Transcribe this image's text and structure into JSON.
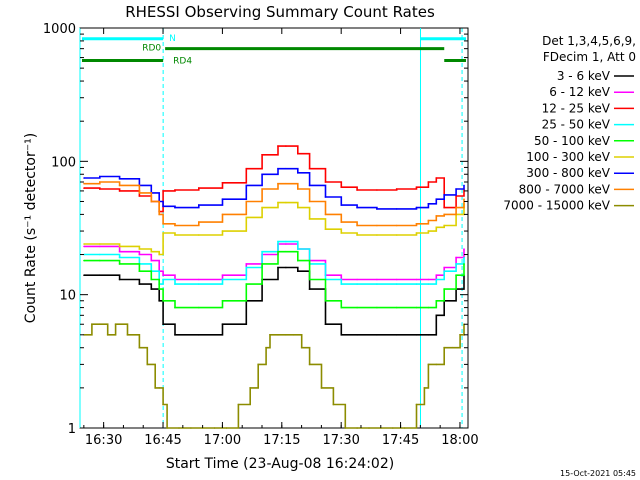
{
  "chart_data": {
    "type": "line",
    "title": "RHESSI Observing Summary Count Rates",
    "xlabel": "Start Time (23-Aug-08 16:24:02)",
    "ylabel": "Count Rate (s⁻¹ detector⁻¹)",
    "x_unit": "minutes since 16:24:02",
    "xlim": [
      0,
      98
    ],
    "ylim": [
      1,
      1000
    ],
    "yscale": "log",
    "x_ticks": [
      {
        "x": 5.97,
        "label": "16:30"
      },
      {
        "x": 20.97,
        "label": "16:45"
      },
      {
        "x": 35.97,
        "label": "17:00"
      },
      {
        "x": 50.97,
        "label": "17:15"
      },
      {
        "x": 65.97,
        "label": "17:30"
      },
      {
        "x": 80.97,
        "label": "17:45"
      },
      {
        "x": 95.97,
        "label": "18:00"
      }
    ],
    "y_ticks": [
      {
        "y": 1,
        "label": "1"
      },
      {
        "y": 10,
        "label": "10"
      },
      {
        "y": 100,
        "label": "100"
      },
      {
        "y": 1000,
        "label": "1000"
      }
    ],
    "legend_header": [
      "Det 1,3,4,5,6,9,",
      "FDecim 1, Att 0"
    ],
    "legend_position": "right",
    "footer": "15-Oct-2021 05:45",
    "series": [
      {
        "name": "3 - 6 keV",
        "color": "#000000",
        "x": [
          1,
          5,
          10,
          15,
          18,
          20,
          21,
          24,
          30,
          36,
          42,
          46,
          50,
          52,
          55,
          58,
          62,
          66,
          70,
          75,
          80,
          85,
          88,
          90,
          92,
          95,
          97
        ],
        "y": [
          14,
          14,
          13,
          12,
          11,
          9,
          6,
          5,
          5,
          6,
          9,
          13,
          16,
          16,
          15,
          11,
          6,
          5,
          5,
          5,
          5,
          5,
          5,
          7,
          9,
          11,
          14
        ]
      },
      {
        "name": "6 - 12 keV",
        "color": "#ff00ff",
        "x": [
          1,
          5,
          10,
          15,
          18,
          20,
          21,
          24,
          30,
          36,
          42,
          46,
          50,
          52,
          55,
          58,
          62,
          66,
          70,
          75,
          80,
          85,
          88,
          90,
          92,
          95,
          97
        ],
        "y": [
          23,
          23,
          21,
          20,
          18,
          15,
          14,
          13,
          13,
          14,
          17,
          20,
          24,
          24,
          22,
          18,
          14,
          13,
          13,
          13,
          13,
          13,
          13,
          14,
          16,
          19,
          22
        ]
      },
      {
        "name": "12 - 25 keV",
        "color": "#ff0000",
        "x": [
          1,
          5,
          10,
          15,
          18,
          20,
          21,
          24,
          30,
          36,
          42,
          46,
          50,
          52,
          55,
          58,
          62,
          66,
          70,
          75,
          80,
          85,
          88,
          90,
          92,
          95,
          97
        ],
        "y": [
          63,
          62,
          60,
          55,
          50,
          42,
          60,
          61,
          63,
          69,
          88,
          112,
          130,
          130,
          114,
          88,
          70,
          64,
          61,
          61,
          62,
          64,
          70,
          75,
          45,
          55,
          62
        ]
      },
      {
        "name": "25 - 50 keV",
        "color": "#00ffff",
        "x": [
          1,
          5,
          10,
          15,
          18,
          20,
          21,
          24,
          30,
          36,
          42,
          46,
          50,
          52,
          55,
          58,
          62,
          66,
          70,
          75,
          80,
          85,
          88,
          90,
          92,
          95,
          97
        ],
        "y": [
          20,
          20,
          19,
          17,
          15,
          12,
          13,
          12,
          12,
          13,
          16,
          21,
          25,
          25,
          22,
          17,
          13,
          12,
          12,
          12,
          12,
          12,
          12,
          13,
          15,
          17,
          19
        ]
      },
      {
        "name": "50 - 100 keV",
        "color": "#00ff00",
        "x": [
          1,
          5,
          10,
          15,
          18,
          20,
          21,
          24,
          30,
          36,
          42,
          46,
          50,
          52,
          55,
          58,
          62,
          66,
          70,
          75,
          80,
          85,
          88,
          90,
          92,
          95,
          97
        ],
        "y": [
          18,
          18,
          17,
          15,
          13,
          11,
          9,
          8,
          8,
          9,
          12,
          17,
          21,
          21,
          18,
          13,
          9,
          8,
          8,
          8,
          8,
          8,
          8,
          9,
          11,
          14,
          17
        ]
      },
      {
        "name": "100 - 300 keV",
        "color": "#ddd000",
        "x": [
          1,
          5,
          10,
          15,
          18,
          20,
          21,
          24,
          30,
          36,
          42,
          46,
          50,
          52,
          55,
          58,
          62,
          66,
          70,
          75,
          80,
          85,
          88,
          90,
          92,
          95,
          97
        ],
        "y": [
          24,
          24,
          23,
          22,
          21,
          20,
          29,
          28,
          28,
          30,
          38,
          45,
          49,
          49,
          45,
          37,
          31,
          29,
          28,
          28,
          28,
          29,
          30,
          32,
          33,
          40,
          48
        ]
      },
      {
        "name": "300 - 800 keV",
        "color": "#0000ff",
        "x": [
          1,
          5,
          10,
          15,
          18,
          20,
          21,
          24,
          30,
          36,
          42,
          46,
          50,
          52,
          55,
          58,
          62,
          66,
          70,
          75,
          80,
          85,
          88,
          90,
          92,
          95,
          97
        ],
        "y": [
          75,
          77,
          74,
          66,
          58,
          50,
          46,
          45,
          47,
          52,
          66,
          80,
          88,
          88,
          82,
          66,
          54,
          47,
          45,
          44,
          44,
          45,
          48,
          52,
          56,
          62,
          66
        ]
      },
      {
        "name": "800 - 7000 keV",
        "color": "#ff8000",
        "x": [
          1,
          5,
          10,
          15,
          18,
          20,
          21,
          24,
          30,
          36,
          42,
          46,
          50,
          52,
          55,
          58,
          62,
          66,
          70,
          75,
          80,
          85,
          88,
          90,
          92,
          95,
          97
        ],
        "y": [
          68,
          70,
          66,
          58,
          50,
          40,
          34,
          33,
          35,
          40,
          50,
          62,
          68,
          68,
          62,
          50,
          40,
          35,
          33,
          33,
          33,
          34,
          36,
          39,
          40,
          45,
          52
        ]
      },
      {
        "name": "7000 - 15000 keV",
        "color": "#8c8c00",
        "x": [
          1,
          3,
          5,
          7,
          9,
          12,
          15,
          17,
          19,
          20,
          21,
          22,
          25,
          28,
          31,
          34,
          37,
          40,
          43,
          45,
          47,
          48,
          50,
          52,
          54,
          56,
          58,
          61,
          64,
          67,
          70,
          73,
          76,
          79,
          82,
          85,
          87,
          88,
          90,
          92,
          94,
          96,
          97
        ],
        "y": [
          5,
          6,
          6,
          5,
          6,
          5,
          4,
          3,
          2,
          2,
          1.5,
          1,
          1,
          1,
          1,
          1,
          1,
          1.5,
          2,
          3,
          4,
          5,
          5,
          5,
          5,
          4,
          3,
          2,
          1.5,
          1,
          1,
          1,
          1,
          1,
          1,
          1.5,
          2,
          3,
          3,
          4,
          4,
          5,
          6
        ]
      }
    ],
    "shaded_verticals": [
      {
        "x": 0,
        "style": "solid"
      },
      {
        "x": 21,
        "style": "dashed"
      },
      {
        "x": 86,
        "style": "solid"
      },
      {
        "x": 96.5,
        "style": "dashed"
      }
    ],
    "flag_bars": [
      {
        "label": "N",
        "color": "#00ffff",
        "segments": [
          [
            0.5,
            21
          ],
          [
            86,
            97.5
          ]
        ],
        "level": 830
      },
      {
        "label": "RD0",
        "color": "#008800",
        "segments": [
          [
            21.5,
            92
          ]
        ],
        "level": 700
      },
      {
        "label": "RD4",
        "color": "#008800",
        "segments": [
          [
            0.5,
            21
          ],
          [
            92,
            97.5
          ]
        ],
        "level": 570
      }
    ]
  }
}
